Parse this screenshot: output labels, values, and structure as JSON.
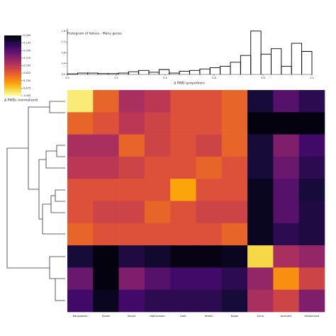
{
  "chart_data": [
    {
      "type": "heatmap",
      "colormap": "inferno",
      "categories": [
        "Bangladesh",
        "Sudan",
        "Kenya",
        "Afghanistan",
        "Haiti",
        "Yemen",
        "Nepal",
        "Syria",
        "Australia",
        "Switzerland"
      ],
      "matrix": [
        [
          0.95,
          0.65,
          0.45,
          0.5,
          0.6,
          0.6,
          0.65,
          0.1,
          0.25,
          0.15
        ],
        [
          0.65,
          0.6,
          0.5,
          0.55,
          0.6,
          0.6,
          0.65,
          0.02,
          0.02,
          0.02
        ],
        [
          0.45,
          0.45,
          0.65,
          0.55,
          0.6,
          0.55,
          0.65,
          0.1,
          0.35,
          0.2
        ],
        [
          0.5,
          0.5,
          0.55,
          0.6,
          0.6,
          0.65,
          0.6,
          0.1,
          0.3,
          0.15
        ],
        [
          0.6,
          0.6,
          0.6,
          0.6,
          0.8,
          0.6,
          0.6,
          0.05,
          0.25,
          0.1
        ],
        [
          0.6,
          0.55,
          0.55,
          0.65,
          0.6,
          0.55,
          0.55,
          0.05,
          0.25,
          0.12
        ],
        [
          0.65,
          0.6,
          0.6,
          0.6,
          0.6,
          0.6,
          0.65,
          0.05,
          0.15,
          0.12
        ],
        [
          0.1,
          0.02,
          0.12,
          0.08,
          0.03,
          0.03,
          0.05,
          0.9,
          0.45,
          0.4
        ],
        [
          0.3,
          0.02,
          0.35,
          0.25,
          0.2,
          0.2,
          0.15,
          0.4,
          0.75,
          0.55
        ],
        [
          0.2,
          0.05,
          0.2,
          0.15,
          0.15,
          0.15,
          0.1,
          0.45,
          0.55,
          0.35
        ]
      ],
      "colorbar": {
        "label": "Δ PWDs (normalized)",
        "lim": [
          0,
          1
        ],
        "ticks": [
          {
            "value": 0,
            "label": "0.000"
          },
          {
            "value": 0.125,
            "label": "0.125"
          },
          {
            "value": 0.25,
            "label": "0.250"
          },
          {
            "value": 0.375,
            "label": "0.375"
          },
          {
            "value": 0.5,
            "label": "0.500"
          },
          {
            "value": 0.625,
            "label": "0.625"
          },
          {
            "value": 0.75,
            "label": "0.750"
          },
          {
            "value": 0.875,
            "label": "0.875"
          },
          {
            "value": 1,
            "label": "1.000"
          }
        ]
      }
    },
    {
      "type": "histogram",
      "title": "Histogram of Values - Many genes",
      "x_label": "Δ PWD (proportion)",
      "bins": [
        0,
        0.0417,
        0.0833,
        0.125,
        0.1667,
        0.2083,
        0.25,
        0.2917,
        0.3333,
        0.375,
        0.4167,
        0.4583,
        0.5,
        0.5417,
        0.5833,
        0.625,
        0.6667,
        0.7083,
        0.75,
        0.7917,
        0.8333,
        0.875,
        0.9167,
        0.9583,
        1
      ],
      "counts": [
        0.02,
        0.05,
        0.05,
        0.03,
        0.03,
        0.05,
        0.1,
        0.15,
        0.08,
        0.18,
        0.05,
        0.12,
        0.15,
        0.2,
        0.25,
        0.3,
        0.45,
        0.7,
        1.6,
        0.75,
        0.95,
        0.3,
        1.15,
        0.85
      ],
      "color": "#000000",
      "xlim": [
        0,
        1
      ],
      "xticks": [
        {
          "value": 0,
          "label": "0.0"
        },
        {
          "value": 0.2,
          "label": "0.2"
        },
        {
          "value": 0.4,
          "label": "0.4"
        },
        {
          "value": 0.6,
          "label": "0.6"
        },
        {
          "value": 0.8,
          "label": "0.8"
        },
        {
          "value": 1,
          "label": "1.0"
        }
      ],
      "ylim": [
        0,
        1.7
      ],
      "yticks": [
        {
          "value": 0,
          "label": "0.0"
        },
        {
          "value": 0.4,
          "label": "0.4"
        },
        {
          "value": 0.8,
          "label": "0.8"
        },
        {
          "value": 1.2,
          "label": "1.2"
        },
        {
          "value": 1.6,
          "label": "1.6"
        }
      ]
    }
  ]
}
